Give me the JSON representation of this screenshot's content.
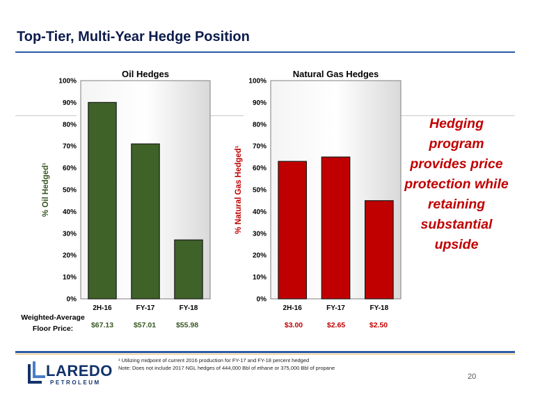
{
  "page": {
    "title": "Top-Tier, Multi-Year Hedge Position",
    "callout": "Hedging program provides price protection while retaining substantial upside",
    "floor_label": "Weighted-Average Floor Price:",
    "footnote_line1": "¹ Utilizing midpoint of current 2016 production for FY-17 and FY-18 percent hedged",
    "footnote_line2": "Note: Does not include 2017 NGL hedges of 444,000 Bbl of ethane or 375,000 Bbl of propane",
    "logo_text": "LAREDO",
    "logo_sub": "PETROLEUM",
    "page_number": "20"
  },
  "chart_data": [
    {
      "type": "bar",
      "title": "Oil Hedges",
      "ylabel": "% Oil Hedged¹",
      "categories": [
        "2H-16",
        "FY-17",
        "FY-18"
      ],
      "values": [
        90,
        71,
        27
      ],
      "ylim": [
        0,
        100
      ],
      "yticks": [
        "0%",
        "10%",
        "20%",
        "30%",
        "40%",
        "50%",
        "60%",
        "70%",
        "80%",
        "90%",
        "100%"
      ],
      "floor_prices": [
        "$67.13",
        "$57.01",
        "$55.98"
      ],
      "bar_color": "#3f6228",
      "grid": false
    },
    {
      "type": "bar",
      "title": "Natural Gas Hedges",
      "ylabel": "% Natural Gas Hedged¹",
      "categories": [
        "2H-16",
        "FY-17",
        "FY-18"
      ],
      "values": [
        63,
        65,
        45
      ],
      "ylim": [
        0,
        100
      ],
      "yticks": [
        "0%",
        "10%",
        "20%",
        "30%",
        "40%",
        "50%",
        "60%",
        "70%",
        "80%",
        "90%",
        "100%"
      ],
      "floor_prices": [
        "$3.00",
        "$2.65",
        "$2.50"
      ],
      "bar_color": "#c00000",
      "grid": false
    }
  ]
}
